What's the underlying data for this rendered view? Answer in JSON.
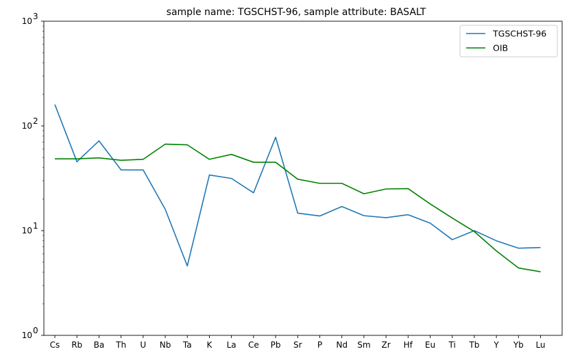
{
  "chart_data": {
    "type": "line",
    "title": "sample name: TGSCHST-96, sample attribute: BASALT",
    "xlabel": "",
    "ylabel": "",
    "yscale": "log",
    "ylim": [
      1,
      1000
    ],
    "y_ticks": [
      1,
      10,
      100,
      1000
    ],
    "y_tick_labels": [
      "10",
      "10",
      "10",
      "10"
    ],
    "y_tick_exponents": [
      "0",
      "1",
      "2",
      "3"
    ],
    "grid": false,
    "legend_position": "top-right",
    "categories": [
      "Cs",
      "Rb",
      "Ba",
      "Th",
      "U",
      "Nb",
      "Ta",
      "K",
      "La",
      "Ce",
      "Pb",
      "Sr",
      "P",
      "Nd",
      "Sm",
      "Zr",
      "Hf",
      "Eu",
      "Ti",
      "Tb",
      "Y",
      "Yb",
      "Lu"
    ],
    "series": [
      {
        "name": "TGSCHST-96",
        "color": "#1f77b4",
        "values": [
          160,
          45.5,
          72,
          38,
          38,
          16,
          4.6,
          34,
          31.5,
          23,
          78,
          14.7,
          13.8,
          17,
          13.9,
          13.3,
          14.2,
          11.8,
          8.2,
          10,
          8,
          6.8,
          6.9
        ]
      },
      {
        "name": "OIB",
        "color": "#008000",
        "values": [
          48.5,
          48.5,
          49.5,
          47,
          48,
          67,
          66,
          48,
          53.5,
          45,
          45,
          31,
          28.3,
          28.3,
          22.5,
          25,
          25.2,
          18,
          13.2,
          9.8,
          6.4,
          4.4,
          4.05
        ]
      }
    ]
  }
}
